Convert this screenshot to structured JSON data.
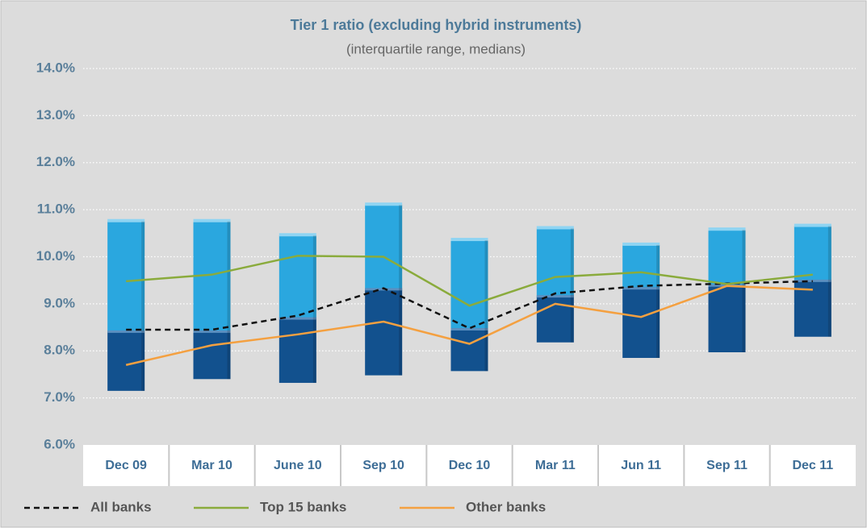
{
  "chart_data": {
    "type": "combo",
    "title": "Tier 1 ratio (excluding hybrid instruments)",
    "subtitle": "(interquartile range, medians)",
    "categories": [
      "Dec 09",
      "Mar 10",
      "June 10",
      "Sep 10",
      "Dec 10",
      "Mar 11",
      "Jun 11",
      "Sep 11",
      "Dec 11"
    ],
    "boxes": {
      "low": [
        7.15,
        7.4,
        7.32,
        7.48,
        7.57,
        8.18,
        7.85,
        7.97,
        8.3
      ],
      "mid": [
        8.4,
        8.4,
        8.68,
        9.3,
        8.45,
        9.15,
        9.32,
        9.38,
        9.48
      ],
      "high": [
        10.75,
        10.75,
        10.45,
        11.1,
        10.35,
        10.6,
        10.25,
        10.57,
        10.65
      ],
      "lower_color": "#12518e",
      "upper_color": "#2aa7df"
    },
    "series": [
      {
        "name": "All banks",
        "color": "#111111",
        "dashed": true,
        "values": [
          8.45,
          8.45,
          8.75,
          9.33,
          8.48,
          9.22,
          9.38,
          9.43,
          9.48
        ]
      },
      {
        "name": "Top 15 banks",
        "color": "#8aab3c",
        "values": [
          9.48,
          9.62,
          10.02,
          10.0,
          8.96,
          9.57,
          9.67,
          9.42,
          9.62
        ]
      },
      {
        "name": "Other banks",
        "color": "#f4a040",
        "values": [
          7.7,
          8.12,
          8.35,
          8.62,
          8.15,
          9.0,
          8.72,
          9.38,
          9.3
        ]
      }
    ],
    "ylim": [
      6,
      14
    ],
    "yticks": [
      {
        "value": 6,
        "label": "6.0%"
      },
      {
        "value": 7,
        "label": "7.0%"
      },
      {
        "value": 8,
        "label": "8.0%"
      },
      {
        "value": 9,
        "label": "9.0%"
      },
      {
        "value": 10,
        "label": "10.0%"
      },
      {
        "value": 11,
        "label": "11.0%"
      },
      {
        "value": 12,
        "label": "12.0%"
      },
      {
        "value": 13,
        "label": "13.0%"
      },
      {
        "value": 14,
        "label": "14.0%"
      }
    ],
    "grid": true,
    "legend": "bottom"
  }
}
